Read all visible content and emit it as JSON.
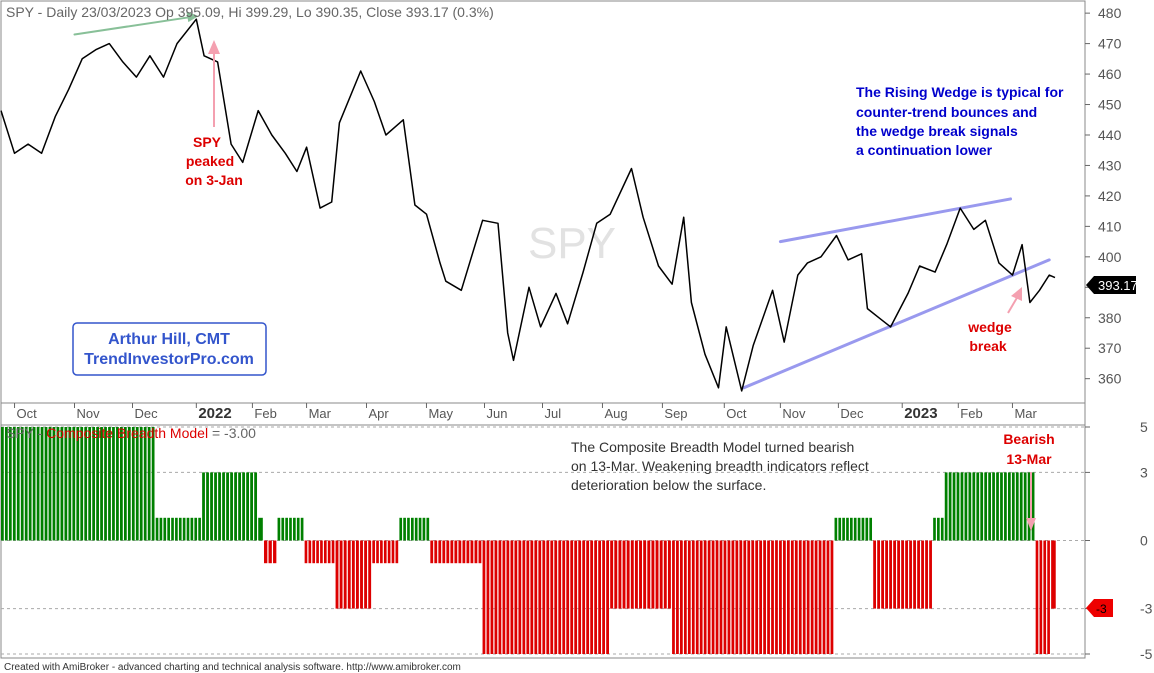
{
  "header": {
    "top_title": "SPY - Daily 23/03/2023 Op 395.09, Hi 399.29, Lo 390.35, Close 393.17 (0.3%)",
    "watermark": "SPY",
    "bottom_title_prefix": "SPY - ",
    "bottom_title_series": "Composite Breadth Model",
    "bottom_title_value": " = -3.00",
    "footer": "Created with AmiBroker - advanced charting and technical analysis software. http://www.amibroker.com"
  },
  "author_box": {
    "line1": "Arthur Hill, CMT",
    "line2": "TrendInvestorPro.com"
  },
  "annotations": {
    "peak": [
      "SPY",
      "peaked",
      "on 3-Jan"
    ],
    "wedge_text": [
      "The Rising Wedge is typical for",
      "counter-trend bounces and",
      "the wedge break signals",
      "a continuation lower"
    ],
    "wedge_break": [
      "wedge",
      "break"
    ],
    "breadth_text": [
      "The Composite Breadth Model turned bearish",
      "on 13-Mar. Weakening breadth indicators reflect",
      "deterioration below the surface."
    ],
    "bearish": [
      "Bearish",
      "13-Mar"
    ]
  },
  "colors": {
    "price_line": "#000000",
    "positive_bar": "#008000",
    "negative_bar": "#dd0000",
    "wedge_line": "#9999ee",
    "annotation_red": "#dd0000",
    "annotation_blue": "#0000cc",
    "arrow_pink": "#f4a0b0",
    "arrow_green": "#88c098",
    "author_blue": "#3355cc",
    "last_price_bg": "#000000",
    "last_value_bg": "#ee0000"
  },
  "chart_data": [
    {
      "type": "line",
      "name": "SPY",
      "ylim": [
        353,
        483
      ],
      "yticks": [
        360,
        370,
        380,
        390,
        400,
        410,
        420,
        430,
        440,
        450,
        460,
        470,
        480
      ],
      "last_value_label": "393.17",
      "x_tick_labels": [
        "Oct",
        "Nov",
        "Dec",
        "2022",
        "Feb",
        "Mar",
        "Apr",
        "May",
        "Jun",
        "Jul",
        "Aug",
        "Sep",
        "Oct",
        "Nov",
        "Dec",
        "2023",
        "Feb",
        "Mar"
      ],
      "x_tick_bold": [
        "2022",
        "2023"
      ],
      "points": [
        [
          "2021-09-24",
          448
        ],
        [
          "2021-10-01",
          434
        ],
        [
          "2021-10-08",
          437
        ],
        [
          "2021-10-15",
          434
        ],
        [
          "2021-10-22",
          446
        ],
        [
          "2021-10-29",
          455
        ],
        [
          "2021-11-05",
          465
        ],
        [
          "2021-11-12",
          468
        ],
        [
          "2021-11-19",
          470
        ],
        [
          "2021-11-26",
          464
        ],
        [
          "2021-12-03",
          459
        ],
        [
          "2021-12-10",
          466
        ],
        [
          "2021-12-17",
          459
        ],
        [
          "2021-12-24",
          470
        ],
        [
          "2022-01-03",
          478
        ],
        [
          "2022-01-07",
          466
        ],
        [
          "2022-01-14",
          464
        ],
        [
          "2022-01-21",
          437
        ],
        [
          "2022-01-27",
          431
        ],
        [
          "2022-02-04",
          448
        ],
        [
          "2022-02-11",
          440
        ],
        [
          "2022-02-18",
          434
        ],
        [
          "2022-02-24",
          428
        ],
        [
          "2022-03-01",
          436
        ],
        [
          "2022-03-08",
          416
        ],
        [
          "2022-03-14",
          418
        ],
        [
          "2022-03-18",
          444
        ],
        [
          "2022-03-29",
          461
        ],
        [
          "2022-04-05",
          451
        ],
        [
          "2022-04-11",
          440
        ],
        [
          "2022-04-20",
          445
        ],
        [
          "2022-04-26",
          417
        ],
        [
          "2022-05-02",
          414
        ],
        [
          "2022-05-09",
          398
        ],
        [
          "2022-05-12",
          392
        ],
        [
          "2022-05-20",
          389
        ],
        [
          "2022-05-31",
          412
        ],
        [
          "2022-06-08",
          411
        ],
        [
          "2022-06-13",
          375
        ],
        [
          "2022-06-16",
          366
        ],
        [
          "2022-06-24",
          390
        ],
        [
          "2022-06-30",
          377
        ],
        [
          "2022-07-08",
          388
        ],
        [
          "2022-07-14",
          378
        ],
        [
          "2022-07-22",
          395
        ],
        [
          "2022-07-29",
          411
        ],
        [
          "2022-08-05",
          414
        ],
        [
          "2022-08-16",
          429
        ],
        [
          "2022-08-22",
          413
        ],
        [
          "2022-08-30",
          397
        ],
        [
          "2022-09-06",
          391
        ],
        [
          "2022-09-12",
          413
        ],
        [
          "2022-09-16",
          385
        ],
        [
          "2022-09-23",
          368
        ],
        [
          "2022-09-30",
          357
        ],
        [
          "2022-10-04",
          377
        ],
        [
          "2022-10-12",
          356
        ],
        [
          "2022-10-18",
          371
        ],
        [
          "2022-10-28",
          389
        ],
        [
          "2022-11-03",
          372
        ],
        [
          "2022-11-10",
          394
        ],
        [
          "2022-11-15",
          398
        ],
        [
          "2022-11-22",
          400
        ],
        [
          "2022-11-30",
          407
        ],
        [
          "2022-12-06",
          399
        ],
        [
          "2022-12-13",
          401
        ],
        [
          "2022-12-16",
          383
        ],
        [
          "2022-12-22",
          380
        ],
        [
          "2022-12-28",
          377
        ],
        [
          "2023-01-06",
          388
        ],
        [
          "2023-01-12",
          397
        ],
        [
          "2023-01-20",
          395
        ],
        [
          "2023-01-26",
          404
        ],
        [
          "2023-02-02",
          416
        ],
        [
          "2023-02-09",
          409
        ],
        [
          "2023-02-15",
          412
        ],
        [
          "2023-02-22",
          398
        ],
        [
          "2023-03-01",
          394
        ],
        [
          "2023-03-06",
          404
        ],
        [
          "2023-03-10",
          385
        ],
        [
          "2023-03-15",
          389
        ],
        [
          "2023-03-20",
          394
        ],
        [
          "2023-03-23",
          393.17
        ]
      ],
      "trendlines": [
        {
          "name": "wedge upper",
          "start": [
            "2022-11-01",
            405
          ],
          "end": [
            "2023-02-28",
            419
          ]
        },
        {
          "name": "wedge lower",
          "start": [
            "2022-10-13",
            357
          ],
          "end": [
            "2023-03-20",
            399
          ]
        },
        {
          "name": "prior high trend",
          "start": [
            "2021-11-01",
            473
          ],
          "end": [
            "2022-01-03",
            479
          ]
        }
      ]
    },
    {
      "type": "bar",
      "name": "Composite Breadth Model",
      "ylim": [
        -5,
        5
      ],
      "yticks": [
        -5,
        -3,
        0,
        3,
        5
      ],
      "last_value_label": "-3",
      "steps": [
        [
          "2021-09-24",
          5
        ],
        [
          "2021-12-13",
          1
        ],
        [
          "2022-01-06",
          3
        ],
        [
          "2022-02-04",
          1
        ],
        [
          "2022-02-07",
          -1
        ],
        [
          "2022-02-14",
          1
        ],
        [
          "2022-02-28",
          -1
        ],
        [
          "2022-03-16",
          -3
        ],
        [
          "2022-04-04",
          -1
        ],
        [
          "2022-04-18",
          1
        ],
        [
          "2022-05-04",
          -1
        ],
        [
          "2022-05-31",
          -5
        ],
        [
          "2022-08-05",
          -3
        ],
        [
          "2022-09-06",
          -5
        ],
        [
          "2022-11-29",
          1
        ],
        [
          "2022-12-19",
          -3
        ],
        [
          "2023-01-19",
          1
        ],
        [
          "2023-01-25",
          3
        ],
        [
          "2023-03-13",
          -5
        ],
        [
          "2023-03-21",
          -3
        ],
        [
          "2023-03-24",
          -3
        ]
      ]
    }
  ]
}
